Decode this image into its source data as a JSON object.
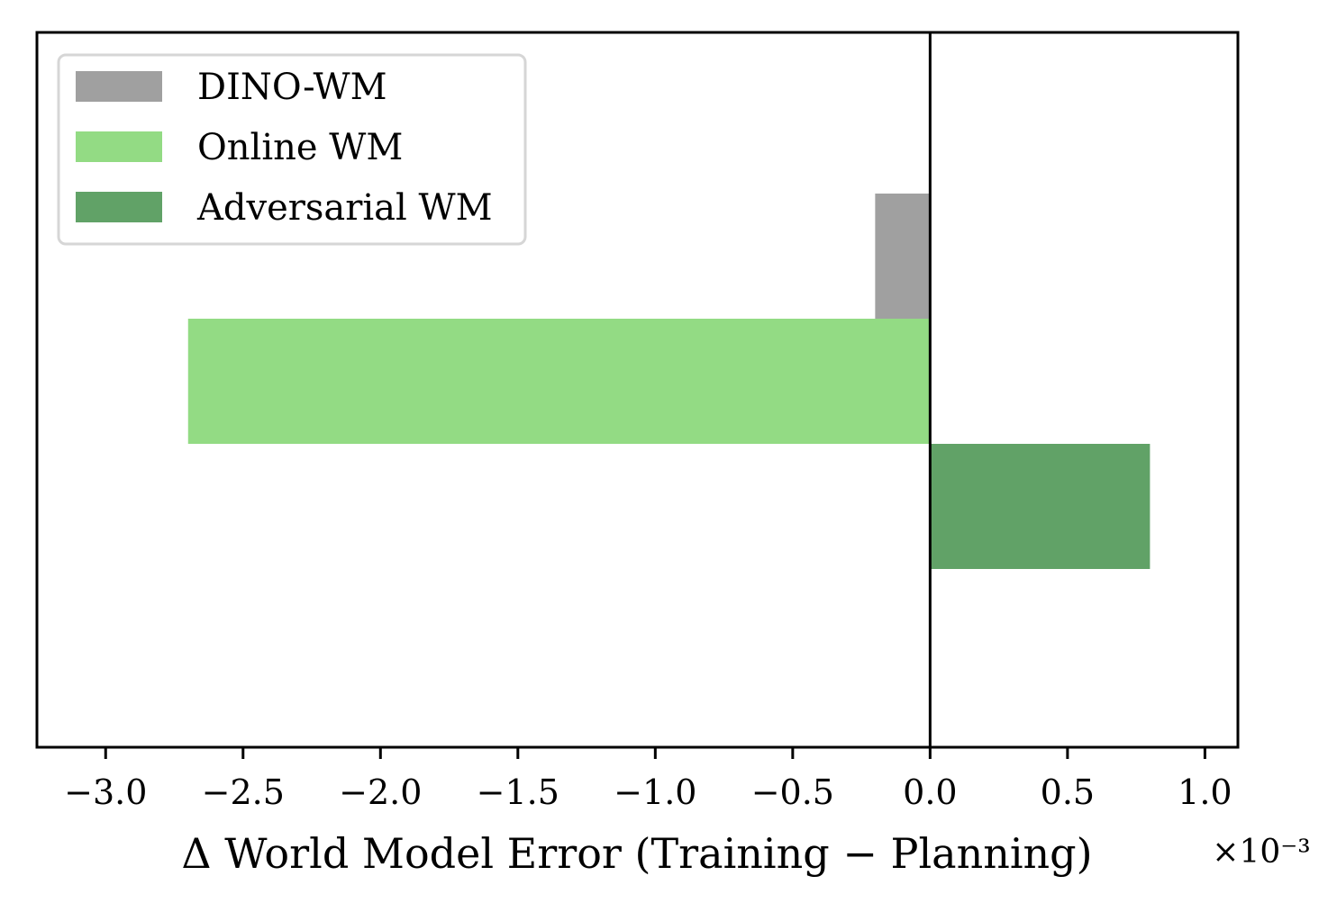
{
  "chart_data": {
    "type": "bar",
    "orientation": "horizontal",
    "title": "",
    "xlabel": "Δ World Model Error (Training − Planning)",
    "ylabel": "",
    "x_scale_label": "×10⁻³",
    "xlim": [
      -3.25,
      1.12
    ],
    "xticks": [
      -3.0,
      -2.5,
      -2.0,
      -1.5,
      -1.0,
      -0.5,
      0.0,
      0.5,
      1.0
    ],
    "xtick_labels": [
      "−3.0",
      "−2.5",
      "−2.0",
      "−1.5",
      "−1.0",
      "−0.5",
      "0.0",
      "0.5",
      "1.0"
    ],
    "zero_line": true,
    "grid": false,
    "legend_position": "upper-left",
    "series": [
      {
        "name": "DINO-WM",
        "value": -0.2,
        "color": "#a0a0a0"
      },
      {
        "name": "Online WM",
        "value": -2.7,
        "color": "#93db84"
      },
      {
        "name": "Adversarial WM",
        "value": 0.8,
        "color": "#61a267"
      }
    ]
  }
}
